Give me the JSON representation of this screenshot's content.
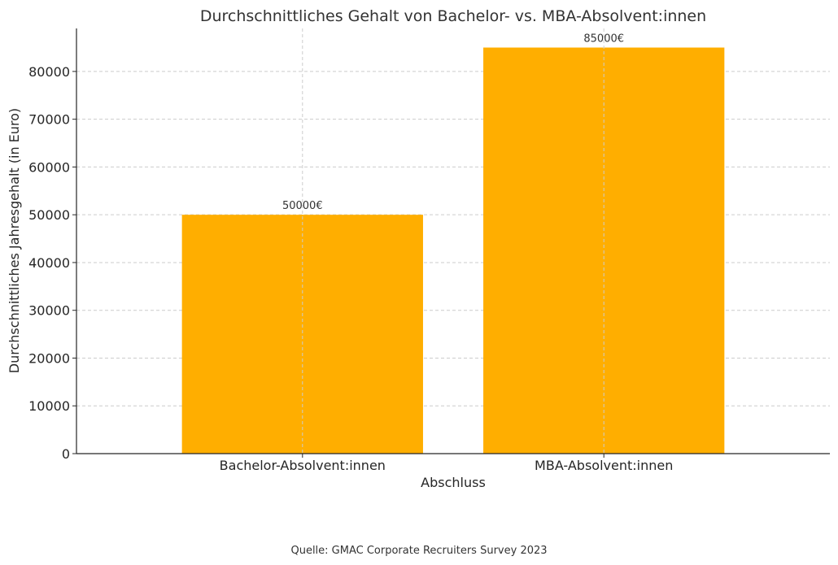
{
  "chart_data": {
    "type": "bar",
    "title": "Durchschnittliches Gehalt von Bachelor- vs. MBA-Absolvent:innen",
    "xlabel": "Abschluss",
    "ylabel": "Durchschnittliches Jahresgehalt (in Euro)",
    "categories": [
      "Bachelor-Absolvent:innen",
      "MBA-Absolvent:innen"
    ],
    "values": [
      50000,
      85000
    ],
    "data_labels": [
      "50000€",
      "85000€"
    ],
    "ylim": [
      0,
      89000
    ],
    "yticks": [
      0,
      10000,
      20000,
      30000,
      40000,
      50000,
      60000,
      70000,
      80000
    ],
    "grid": true,
    "bar_color": "#FFAE00"
  },
  "source_note": "Quelle: GMAC Corporate Recruiters Survey 2023"
}
